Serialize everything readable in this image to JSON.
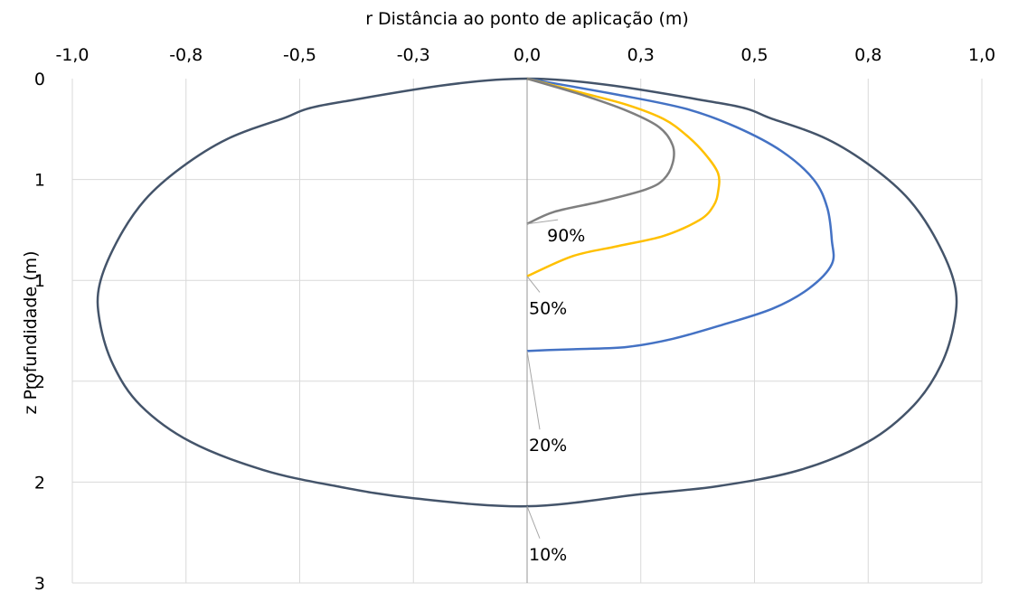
{
  "chart_data": {
    "type": "line",
    "title": "",
    "xlabel": "r Distância ao ponto de aplicação  (m)",
    "ylabel": "z Profundidade (m)",
    "x_axis_position": "top",
    "y_axis_inverted": true,
    "xlim": [
      -1.0,
      1.0
    ],
    "ylim": [
      0,
      2.5
    ],
    "grid": true,
    "x_ticks": [
      {
        "value": -1.0,
        "label": "-1,0"
      },
      {
        "value": -0.75,
        "label": "-0,8"
      },
      {
        "value": -0.5,
        "label": "-0,5"
      },
      {
        "value": -0.25,
        "label": "-0,3"
      },
      {
        "value": 0.0,
        "label": "0,0"
      },
      {
        "value": 0.25,
        "label": "0,3"
      },
      {
        "value": 0.5,
        "label": "0,5"
      },
      {
        "value": 0.75,
        "label": "0,8"
      },
      {
        "value": 1.0,
        "label": "1,0"
      }
    ],
    "y_ticks": [
      {
        "value": 0.0,
        "label": "0"
      },
      {
        "value": 0.5,
        "label": "1"
      },
      {
        "value": 1.0,
        "label": "1"
      },
      {
        "value": 1.5,
        "label": "2"
      },
      {
        "value": 2.0,
        "label": "2"
      },
      {
        "value": 2.5,
        "label": "3"
      }
    ],
    "center_line_color": "#a6a6a6",
    "series": [
      {
        "label": "10%",
        "color": "#44546a",
        "closed": true,
        "points": [
          [
            0.0,
            0.0
          ],
          [
            0.42,
            0.12
          ],
          [
            0.54,
            0.2
          ],
          [
            0.66,
            0.3
          ],
          [
            0.76,
            0.44
          ],
          [
            0.84,
            0.6
          ],
          [
            0.9,
            0.8
          ],
          [
            0.94,
            1.02
          ],
          [
            0.94,
            1.2
          ],
          [
            0.91,
            1.42
          ],
          [
            0.85,
            1.62
          ],
          [
            0.75,
            1.8
          ],
          [
            0.6,
            1.94
          ],
          [
            0.42,
            2.02
          ],
          [
            0.25,
            2.06
          ],
          [
            0.0,
            2.12
          ],
          [
            -0.25,
            2.08
          ],
          [
            -0.42,
            2.02
          ],
          [
            -0.58,
            1.94
          ],
          [
            -0.74,
            1.8
          ],
          [
            -0.85,
            1.62
          ],
          [
            -0.91,
            1.42
          ],
          [
            -0.94,
            1.2
          ],
          [
            -0.94,
            1.02
          ],
          [
            -0.9,
            0.8
          ],
          [
            -0.84,
            0.6
          ],
          [
            -0.76,
            0.44
          ],
          [
            -0.66,
            0.3
          ],
          [
            -0.54,
            0.2
          ],
          [
            -0.42,
            0.12
          ]
        ]
      },
      {
        "label": "20%",
        "color": "#4472c4",
        "closed": false,
        "points": [
          [
            0.0,
            0.0
          ],
          [
            0.2,
            0.08
          ],
          [
            0.35,
            0.15
          ],
          [
            0.46,
            0.24
          ],
          [
            0.56,
            0.36
          ],
          [
            0.63,
            0.5
          ],
          [
            0.66,
            0.64
          ],
          [
            0.67,
            0.8
          ],
          [
            0.67,
            0.92
          ],
          [
            0.62,
            1.04
          ],
          [
            0.54,
            1.14
          ],
          [
            0.43,
            1.22
          ],
          [
            0.32,
            1.29
          ],
          [
            0.22,
            1.33
          ],
          [
            0.12,
            1.34
          ],
          [
            0.05,
            1.345
          ],
          [
            0.0,
            1.35
          ]
        ]
      },
      {
        "label": "50%",
        "color": "#ffc000",
        "closed": false,
        "points": [
          [
            0.0,
            0.0
          ],
          [
            0.12,
            0.07
          ],
          [
            0.22,
            0.13
          ],
          [
            0.3,
            0.2
          ],
          [
            0.35,
            0.28
          ],
          [
            0.39,
            0.37
          ],
          [
            0.42,
            0.47
          ],
          [
            0.42,
            0.56
          ],
          [
            0.41,
            0.63
          ],
          [
            0.38,
            0.7
          ],
          [
            0.3,
            0.78
          ],
          [
            0.2,
            0.83
          ],
          [
            0.1,
            0.88
          ],
          [
            0.0,
            0.98
          ]
        ]
      },
      {
        "label": "90%",
        "color": "#7f7f7f",
        "closed": false,
        "points": [
          [
            0.0,
            0.0
          ],
          [
            0.12,
            0.08
          ],
          [
            0.22,
            0.16
          ],
          [
            0.29,
            0.24
          ],
          [
            0.32,
            0.33
          ],
          [
            0.32,
            0.42
          ],
          [
            0.3,
            0.5
          ],
          [
            0.26,
            0.55
          ],
          [
            0.16,
            0.61
          ],
          [
            0.06,
            0.66
          ],
          [
            0.0,
            0.72
          ]
        ]
      }
    ],
    "annotations": [
      {
        "text": "90%",
        "anchor": [
          0.0,
          0.72
        ],
        "label_at": [
          0.04,
          0.78
        ]
      },
      {
        "text": "50%",
        "anchor": [
          0.0,
          0.98
        ],
        "label_at": [
          0.0,
          1.14
        ]
      },
      {
        "text": "20%",
        "anchor": [
          0.0,
          1.35
        ],
        "label_at": [
          0.0,
          1.82
        ]
      },
      {
        "text": "10%",
        "anchor": [
          0.0,
          2.12
        ],
        "label_at": [
          0.0,
          2.36
        ]
      }
    ]
  }
}
